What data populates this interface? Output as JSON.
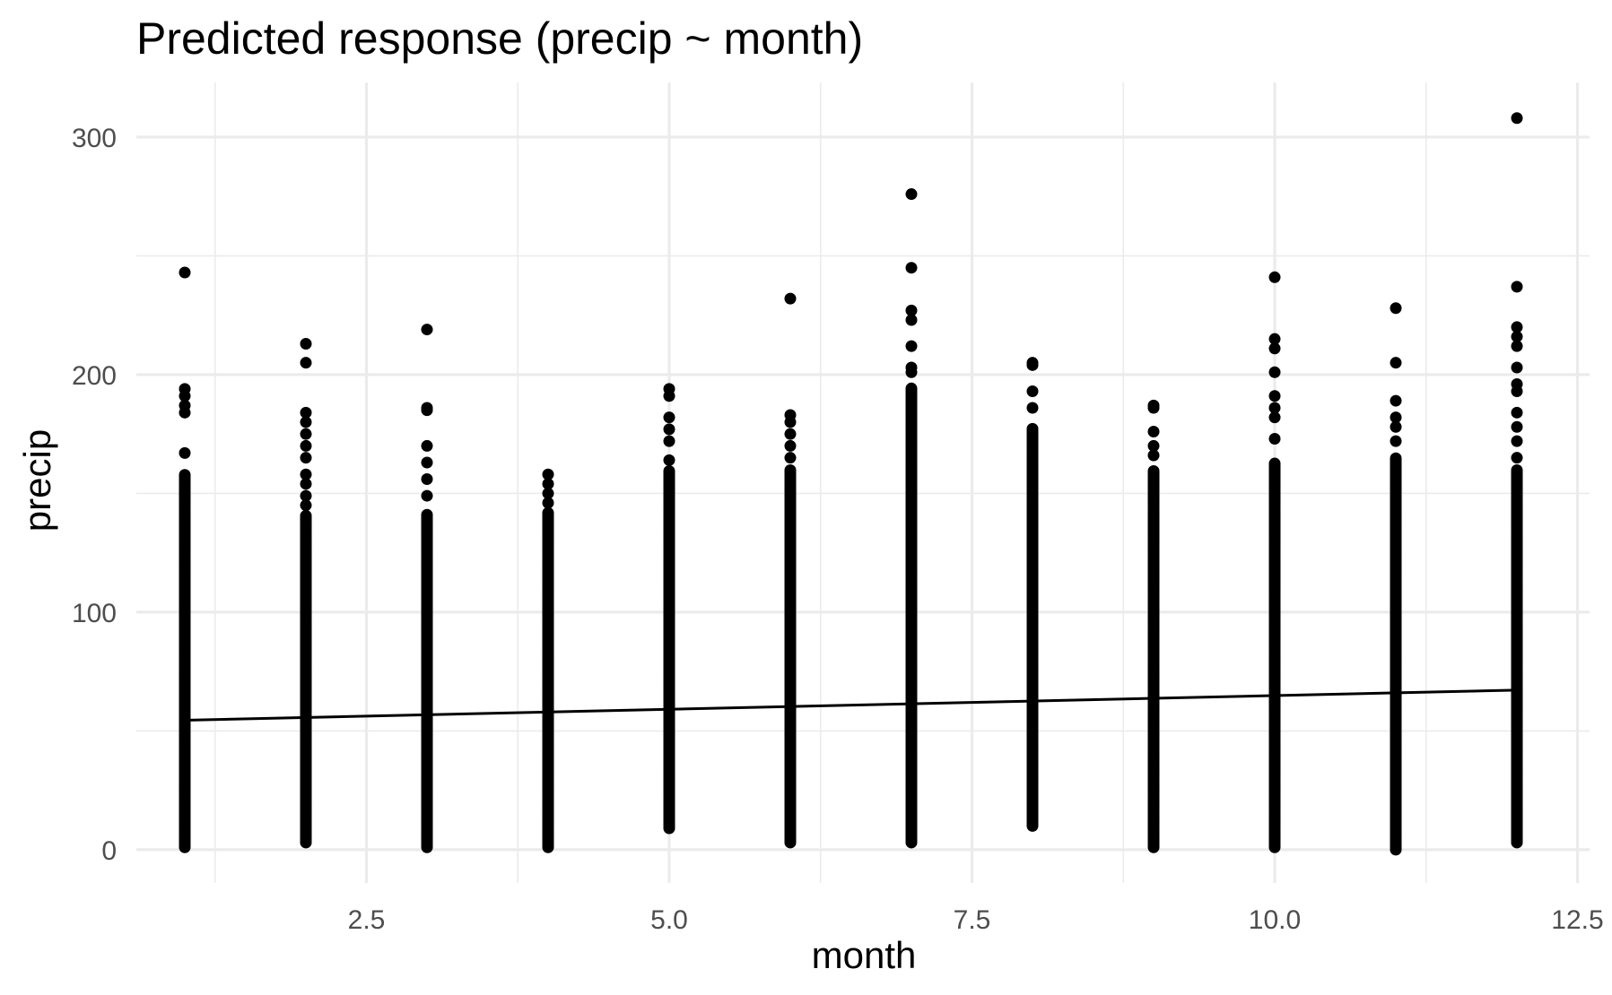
{
  "chart_data": {
    "type": "scatter",
    "title": "Predicted response (precip ~ month)",
    "xlabel": "month",
    "ylabel": "precip",
    "xlim": [
      0.6,
      12.6
    ],
    "ylim": [
      -14,
      323
    ],
    "x_ticks": [
      2.5,
      5.0,
      7.5,
      10.0,
      12.5
    ],
    "x_tick_labels": [
      "2.5",
      "5.0",
      "7.5",
      "10.0",
      "12.5"
    ],
    "y_ticks": [
      0,
      100,
      200,
      300
    ],
    "y_tick_labels": [
      "0",
      "100",
      "200",
      "300"
    ],
    "grid": true,
    "legend": "none",
    "series": [
      {
        "kind": "points",
        "columns": [
          {
            "x": 1,
            "min": 1,
            "dense_max": 158,
            "extra": [
              167,
              184,
              187,
              191,
              194,
              243
            ]
          },
          {
            "x": 2,
            "min": 3,
            "dense_max": 141,
            "extra": [
              145,
              149,
              154,
              158,
              165,
              170,
              175,
              180,
              184,
              205,
              213
            ]
          },
          {
            "x": 3,
            "min": 1,
            "dense_max": 141,
            "extra": [
              149,
              156,
              163,
              170,
              185,
              186,
              219
            ]
          },
          {
            "x": 4,
            "min": 1,
            "dense_max": 142,
            "extra": [
              146,
              150,
              154,
              158
            ]
          },
          {
            "x": 5,
            "min": 9,
            "dense_max": 160,
            "extra": [
              164,
              172,
              177,
              182,
              191,
              194
            ]
          },
          {
            "x": 6,
            "min": 3,
            "dense_max": 160,
            "extra": [
              165,
              170,
              175,
              180,
              183,
              232
            ]
          },
          {
            "x": 7,
            "min": 3,
            "dense_max": 195,
            "extra": [
              201,
              203,
              212,
              223,
              227,
              245,
              276
            ]
          },
          {
            "x": 8,
            "min": 10,
            "dense_max": 178,
            "extra": [
              186,
              193,
              204,
              205
            ]
          },
          {
            "x": 9,
            "min": 1,
            "dense_max": 160,
            "extra": [
              166,
              170,
              176,
              186,
              187
            ]
          },
          {
            "x": 10,
            "min": 1,
            "dense_max": 163,
            "extra": [
              173,
              182,
              186,
              191,
              201,
              211,
              215,
              241
            ]
          },
          {
            "x": 11,
            "min": 0,
            "dense_max": 165,
            "extra": [
              172,
              178,
              182,
              189,
              205,
              228
            ]
          },
          {
            "x": 12,
            "min": 3,
            "dense_max": 160,
            "extra": [
              165,
              172,
              178,
              184,
              193,
              196,
              203,
              212,
              216,
              220,
              237,
              308
            ]
          }
        ]
      },
      {
        "kind": "fit-line",
        "x": [
          1,
          12
        ],
        "y": [
          54.5,
          67.2
        ]
      }
    ]
  }
}
